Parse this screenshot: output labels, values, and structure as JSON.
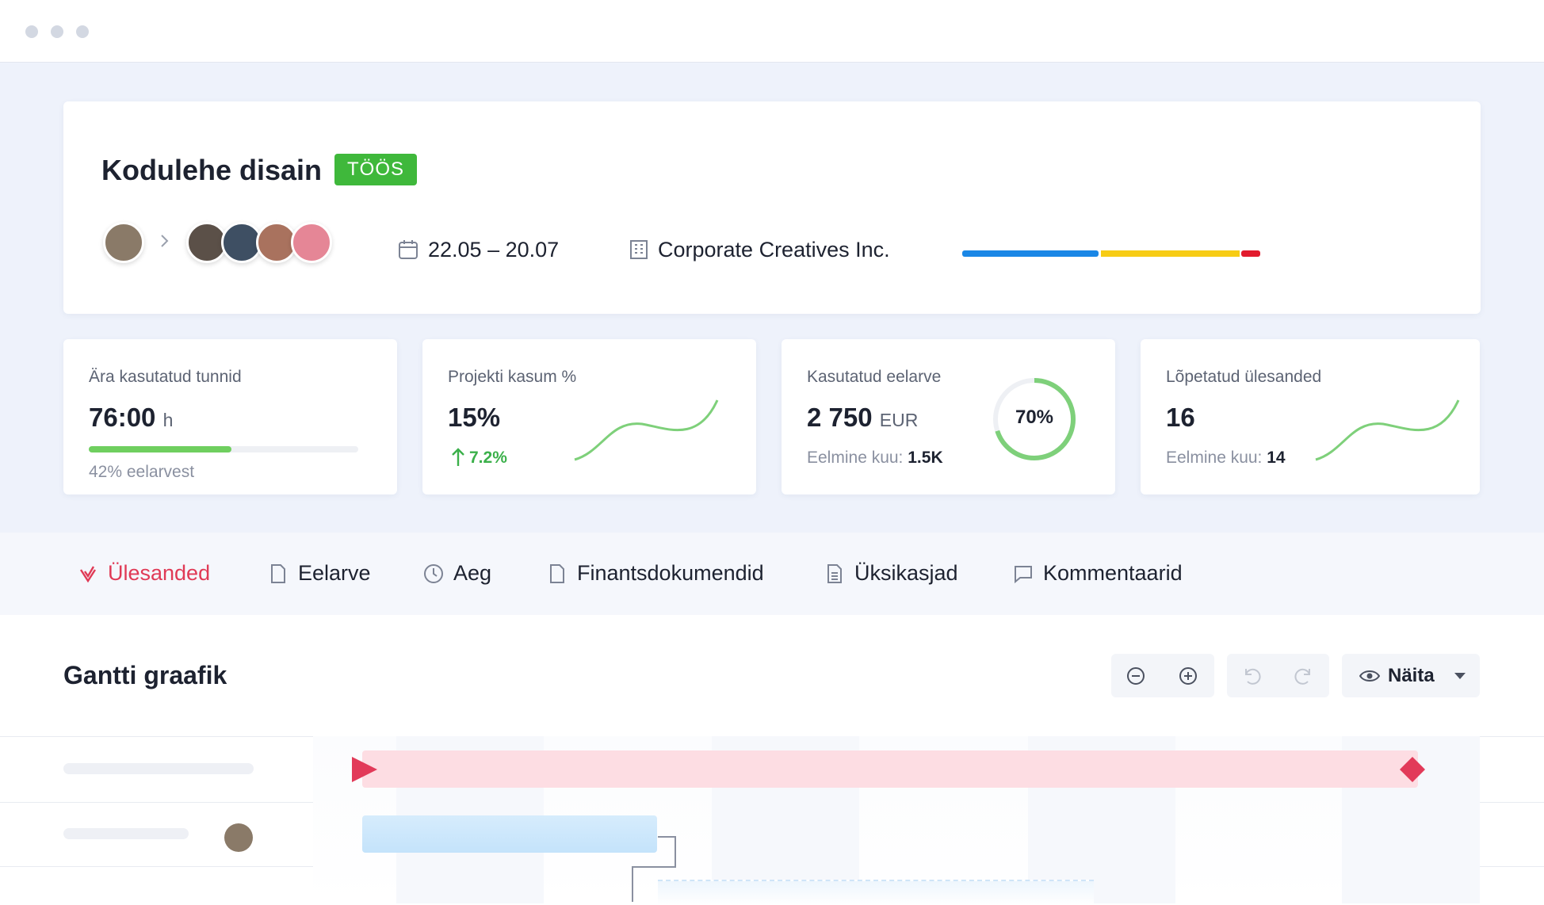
{
  "project": {
    "title": "Kodulehe disain",
    "status": "TÖÖS",
    "dates": "22.05 – 20.07",
    "client": "Corporate Creatives Inc."
  },
  "cards": [
    {
      "label": "Ära kasutatud tunnid",
      "value": "76:00",
      "unit": "h",
      "note": "42% eelarvest"
    },
    {
      "label": "Projekti kasum %",
      "value": "15%",
      "change": "7.2%"
    },
    {
      "label": "Kasutatud eelarve",
      "value": "2 750",
      "unit": "EUR",
      "note_label": "Eelmine kuu:",
      "note_value": "1.5K",
      "ring": "70%"
    },
    {
      "label": "Lõpetatud ülesanded",
      "value": "16",
      "note_label": "Eelmine kuu:",
      "note_value": "14"
    }
  ],
  "tabs": [
    "Ülesanded",
    "Eelarve",
    "Aeg",
    "Finantsdokumendid",
    "Üksikasjad",
    "Kommentaarid"
  ],
  "gantt": {
    "title": "Gantti graafik",
    "show_button": "Näita"
  }
}
